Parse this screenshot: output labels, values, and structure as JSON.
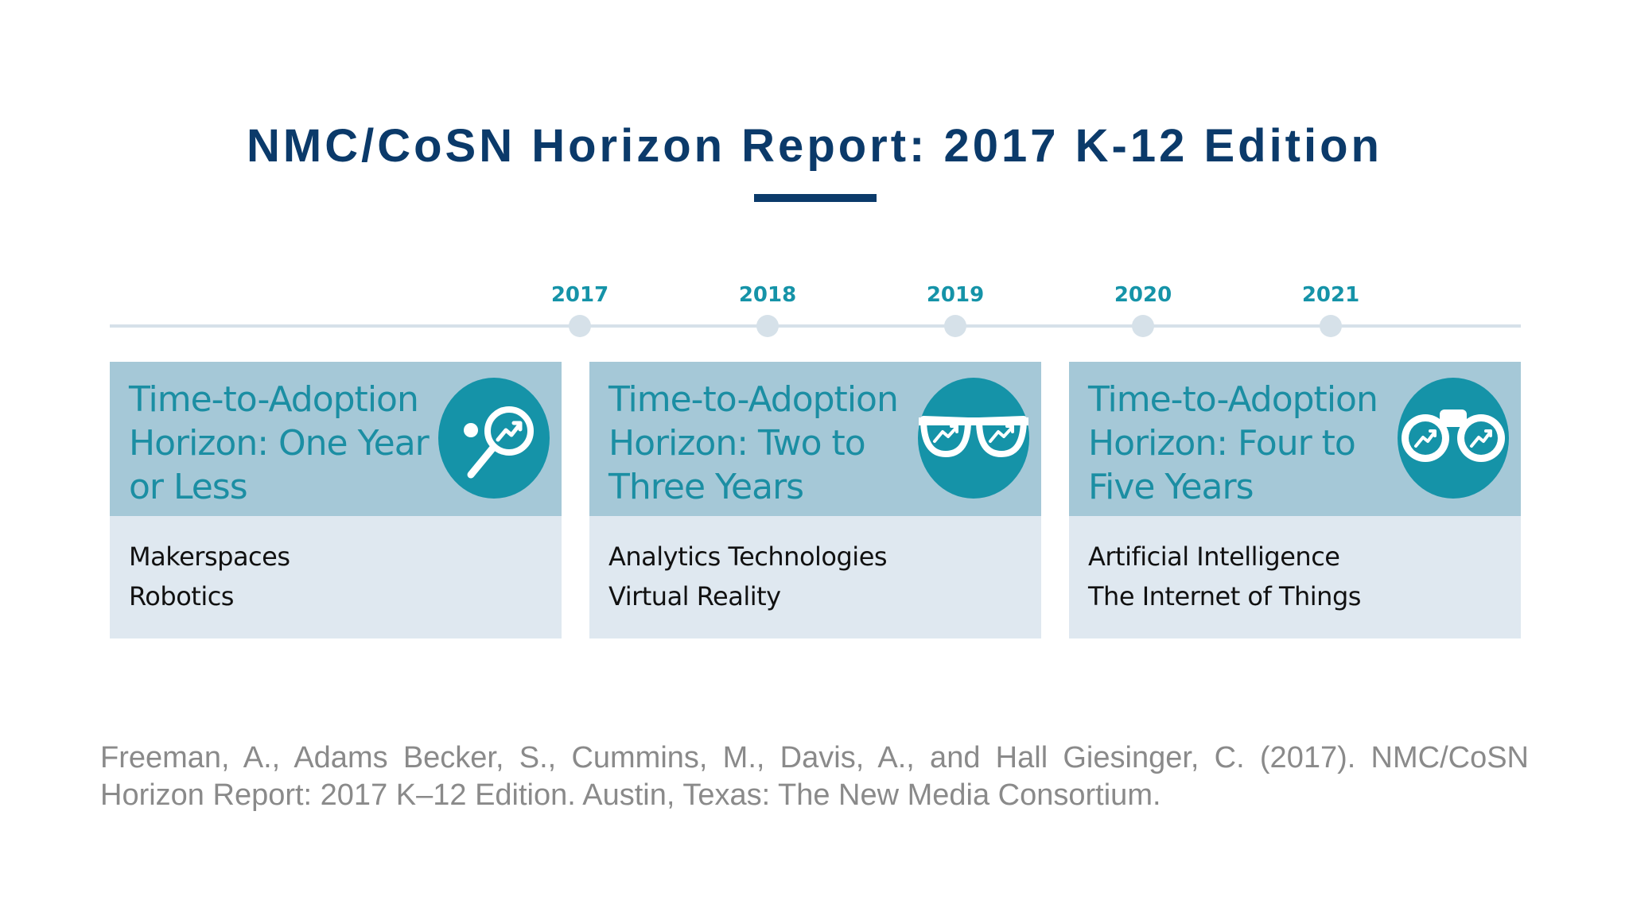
{
  "title": "NMC/CoSN Horizon Report: 2017 K-12 Edition",
  "colors": {
    "title": "#0b3a6a",
    "year": "#1593a8",
    "card_header": "#a5c8d7",
    "card_body": "#dfe8f0",
    "icon_circle": "#1593a8",
    "timeline": "#d6e1e9",
    "citation": "#8a8a8a"
  },
  "timeline": {
    "years": [
      "2017",
      "2018",
      "2019",
      "2020",
      "2021"
    ]
  },
  "horizons": [
    {
      "title_lines": [
        "Time-to-Adoption",
        "Horizon: One Year",
        "or Less"
      ],
      "icon": "magnifier-trend-icon",
      "items": [
        "Makerspaces",
        "Robotics"
      ]
    },
    {
      "title_lines": [
        "Time-to-Adoption",
        "Horizon: Two to",
        "Three Years"
      ],
      "icon": "glasses-trend-icon",
      "items": [
        "Analytics Technologies",
        "Virtual Reality"
      ]
    },
    {
      "title_lines": [
        "Time-to-Adoption",
        "Horizon: Four to",
        "Five Years"
      ],
      "icon": "binoculars-trend-icon",
      "items": [
        "Artificial Intelligence",
        "The Internet of Things"
      ]
    }
  ],
  "citation": "Freeman, A., Adams Becker, S., Cummins, M., Davis, A., and Hall Giesinger, C. (2017). NMC/CoSN Horizon Report: 2017 K–12 Edition. Austin, Texas: The New Media Consortium."
}
